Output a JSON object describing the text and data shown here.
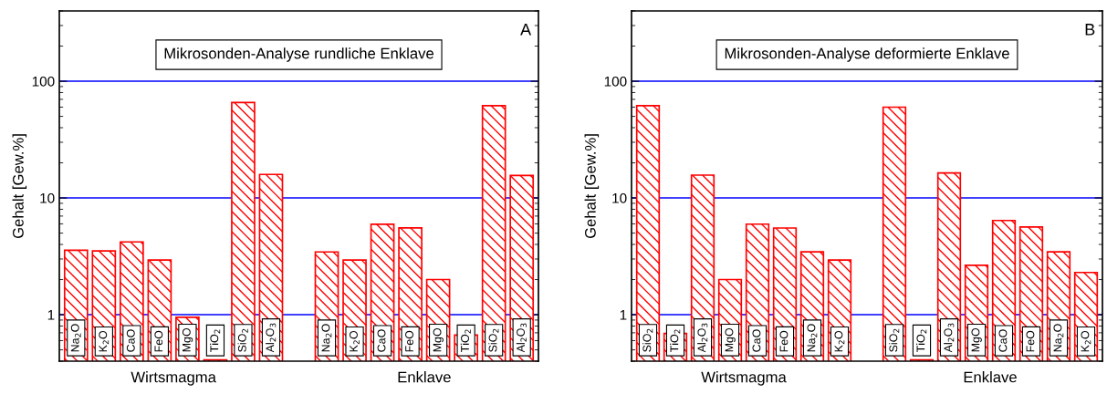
{
  "chart_data": [
    {
      "type": "bar",
      "title": "Mikrosonden-Analyse rundliche Enklave",
      "subtitle": "A",
      "ylabel": "Gehalt [Gew.%]",
      "categories": [
        "Na$_{2}$O",
        "K$_{2}$O",
        "CaO",
        "FeO",
        "MgO",
        "TiO$_{2}$",
        "SiO$_{2}$",
        "Al$_{2}$O$_{3}$",
        null,
        "Na$_{2}$O",
        "K$_{2}$O",
        "CaO",
        "FeO",
        "MgO",
        "TiO$_{2}$",
        "SiO$_{2}$",
        "Al$_{2}$O$_{3}$"
      ],
      "values": [
        3.57,
        3.52,
        4.2,
        2.94,
        0.95,
        0.41,
        65.7,
        15.9,
        null,
        3.45,
        2.94,
        5.96,
        5.55,
        2.0,
        0.67,
        61.7,
        15.6
      ],
      "color": "#ff0000",
      "annotations": [
        "Wirtsmagma",
        "Enklave"
      ],
      "log": "y",
      "ylim": [
        0.4,
        400
      ],
      "yticks": [
        1,
        10,
        100
      ],
      "grid": "y"
    },
    {
      "type": "bar",
      "title": "Mikrosonden-Analyse deformierte Enklave",
      "subtitle": "B",
      "ylabel": "Gehalt [Gew.%]",
      "categories": [
        "SiO$_{2}$",
        "TiO$_{2}$",
        "Al$_{2}$O$_{3}$",
        "MgO",
        "CaO",
        "FeO",
        "Na$_{2}$O",
        "K$_{2}$O",
        null,
        "SiO$_{2}$",
        "TiO$_{2}$",
        "Al$_{2}$O$_{3}$",
        "MgO",
        "CaO",
        "FeO",
        "Na$_{2}$O",
        "K$_{2}$O"
      ],
      "values": [
        61.7,
        0.69,
        15.7,
        2.0,
        5.97,
        5.53,
        3.46,
        2.94,
        null,
        60.0,
        0.41,
        16.4,
        2.65,
        6.41,
        5.65,
        3.46,
        2.3
      ],
      "color": "#ff0000",
      "annotations": [
        "Wirtsmagma",
        "Enklave"
      ],
      "log": "y",
      "ylim": [
        0.4,
        400
      ],
      "yticks": [
        1,
        10,
        100
      ],
      "grid": "y"
    }
  ]
}
